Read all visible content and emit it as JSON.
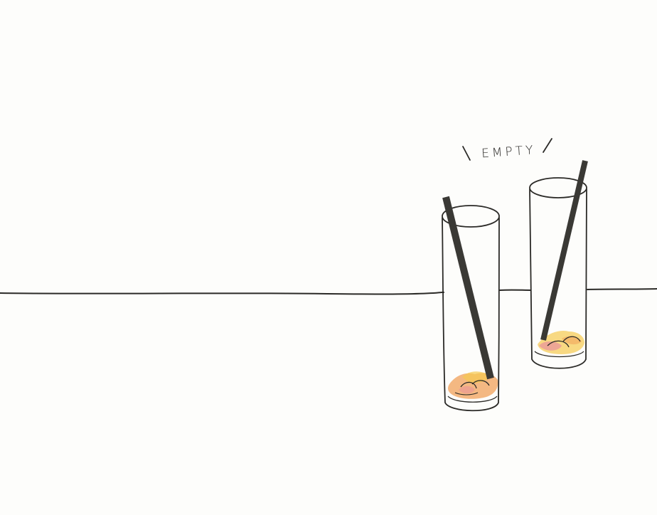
{
  "illustration": {
    "caption": "EMPTY",
    "subject": "two-glasses-with-straws",
    "colors": {
      "background": "#fdfdfb",
      "ink": "#2b2a27",
      "straw": "#3a3935",
      "residue_orange": "#f0a05a",
      "residue_yellow": "#f5c94f",
      "residue_pink": "#e78aa0"
    }
  }
}
